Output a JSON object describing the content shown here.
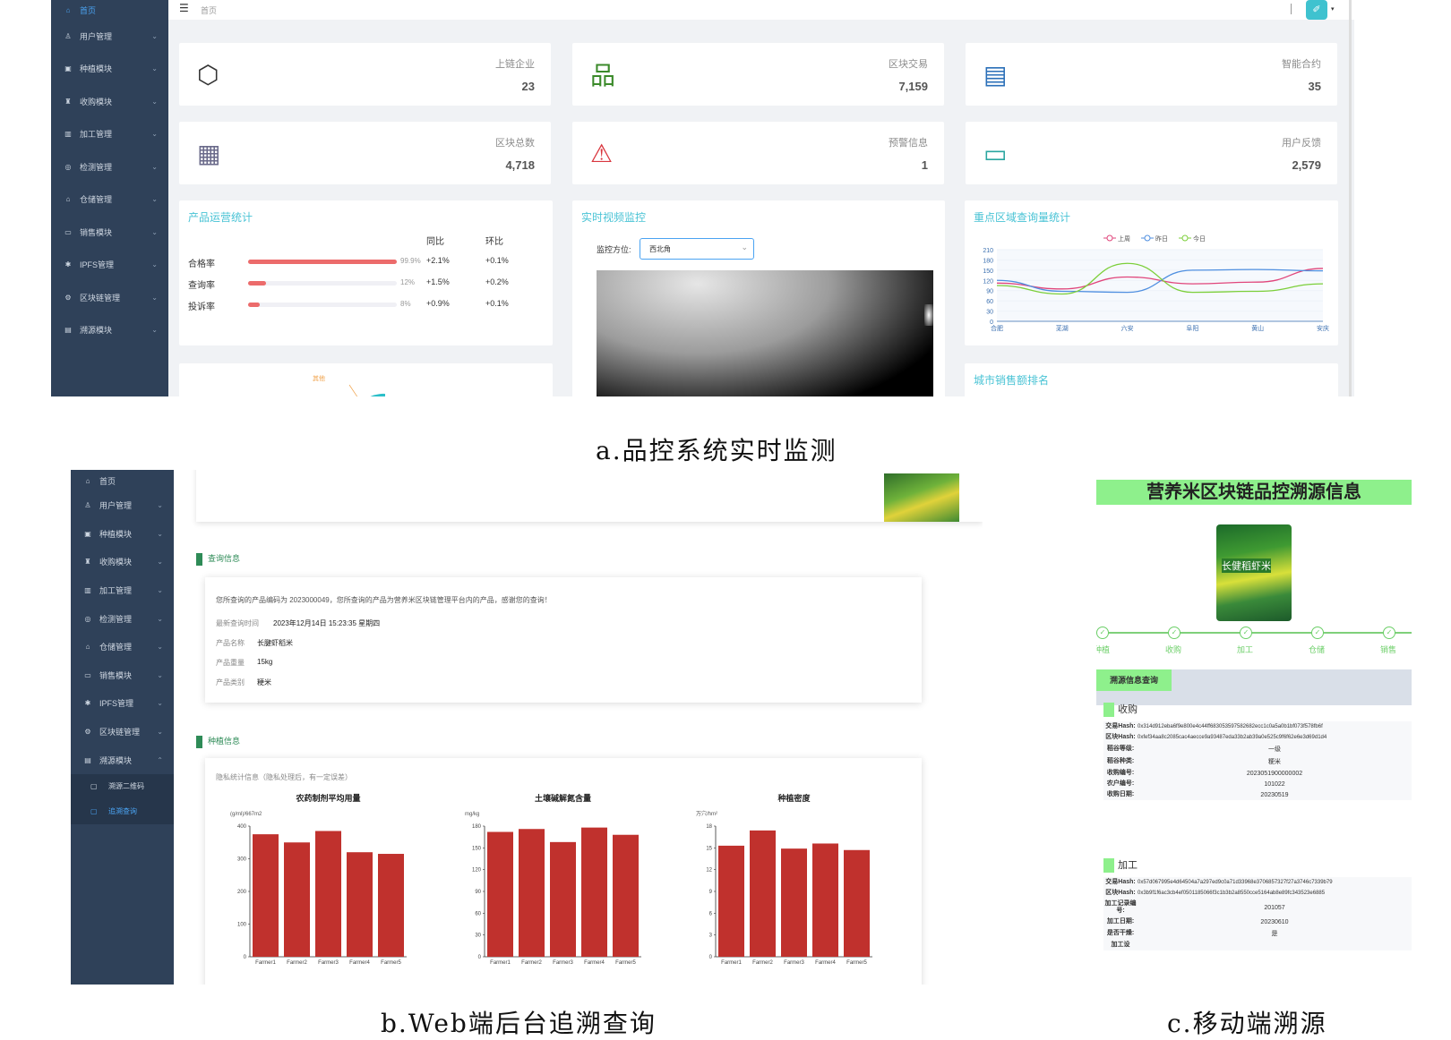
{
  "panel_a": {
    "sidebar": [
      {
        "label": "首页",
        "icon": "home-icon"
      },
      {
        "label": "用户管理",
        "icon": "user-icon"
      },
      {
        "label": "种植模块",
        "icon": "seed-icon"
      },
      {
        "label": "收购模块",
        "icon": "cart-icon"
      },
      {
        "label": "加工管理",
        "icon": "factory-icon"
      },
      {
        "label": "检测管理",
        "icon": "check-icon"
      },
      {
        "label": "仓储管理",
        "icon": "warehouse-icon"
      },
      {
        "label": "销售模块",
        "icon": "sales-icon"
      },
      {
        "label": "IPFS管理",
        "icon": "ipfs-icon"
      },
      {
        "label": "区块链管理",
        "icon": "gear-icon"
      },
      {
        "label": "溯源模块",
        "icon": "trace-icon"
      }
    ],
    "breadcrumb": "首页",
    "stats": [
      {
        "label": "上链企业",
        "value": "23",
        "icon": "cube-icon",
        "color": "#333333"
      },
      {
        "label": "区块交易",
        "value": "7,159",
        "icon": "org-chart-icon",
        "color": "#3b8a2a"
      },
      {
        "label": "智能合约",
        "value": "35",
        "icon": "contract-icon",
        "color": "#2a6fb8"
      },
      {
        "label": "区块总数",
        "value": "4,718",
        "icon": "blocks-icon",
        "color": "#6a6a8a"
      },
      {
        "label": "预警信息",
        "value": "1",
        "icon": "warning-icon",
        "color": "#d9363e"
      },
      {
        "label": "用户反馈",
        "value": "2,579",
        "icon": "feedback-icon",
        "color": "#2aa6a0"
      }
    ],
    "product_stats": {
      "title": "产品运营统计",
      "col_yoy": "同比",
      "col_mom": "环比",
      "rows": [
        {
          "label": "合格率",
          "pct_text": "99.9%",
          "pct": 99.9,
          "yoy": "+2.1%",
          "mom": "+0.1%"
        },
        {
          "label": "查询率",
          "pct_text": "12%",
          "pct": 12,
          "yoy": "+1.5%",
          "mom": "+0.2%"
        },
        {
          "label": "投诉率",
          "pct_text": "8%",
          "pct": 8,
          "yoy": "+0.9%",
          "mom": "+0.1%"
        }
      ],
      "pie_label": "其他"
    },
    "video": {
      "title": "实时视频监控",
      "select_label": "监控方位:",
      "select_value": "西北角"
    },
    "region_chart": {
      "title": "重点区域查询量统计",
      "chart_data": {
        "type": "line",
        "categories": [
          "合肥",
          "芜湖",
          "六安",
          "阜阳",
          "黄山",
          "安庆"
        ],
        "series": [
          {
            "name": "上周",
            "color": "#e0457b",
            "values": [
              112,
              95,
              130,
              110,
              115,
              155
            ]
          },
          {
            "name": "昨日",
            "color": "#4f8fe0",
            "values": [
              120,
              88,
              85,
              150,
              152,
              148
            ]
          },
          {
            "name": "今日",
            "color": "#7ccf3a",
            "values": [
              105,
              80,
              170,
              85,
              88,
              110
            ]
          }
        ],
        "yticks": [
          0,
          30,
          60,
          90,
          120,
          150,
          180,
          210
        ],
        "ylim": [
          0,
          210
        ]
      }
    },
    "city_rank_title": "城市销售额排名",
    "caption": "a.品控系统实时监测"
  },
  "panel_b": {
    "sidebar": [
      {
        "label": "首页"
      },
      {
        "label": "用户管理"
      },
      {
        "label": "种植模块"
      },
      {
        "label": "收购模块"
      },
      {
        "label": "加工管理"
      },
      {
        "label": "检测管理"
      },
      {
        "label": "仓储管理"
      },
      {
        "label": "销售模块"
      },
      {
        "label": "IPFS管理"
      },
      {
        "label": "区块链管理"
      },
      {
        "label": "溯源模块"
      }
    ],
    "submenu": [
      {
        "label": "溯源二维码"
      },
      {
        "label": "追溯查询"
      }
    ],
    "query_title": "查询信息",
    "query_intro": "您所查询的产品编码为 2023000049，您所查询的产品为营养米区块链管理平台内的产品，感谢您的查询！",
    "query_fields": [
      {
        "k": "最新查询时间",
        "v": "2023年12月14日 15:23:35 星期四"
      },
      {
        "k": "产品名称",
        "v": "长腱虾稻米"
      },
      {
        "k": "产品重量",
        "v": "15kg"
      },
      {
        "k": "产品类别",
        "v": "粳米"
      }
    ],
    "plant_title": "种植信息",
    "privacy_note": "隐私统计信息（隐私处理后，有一定误差）",
    "charts": [
      {
        "title": "农药制剂平均用量",
        "unit": "(g/ml)/667m2",
        "yticks": [
          0,
          100,
          200,
          300,
          400
        ],
        "ylim": [
          0,
          400
        ],
        "chart_data": {
          "type": "bar",
          "categories": [
            "Farmer1",
            "Farmer2",
            "Farmer3",
            "Farmer4",
            "Farmer5"
          ],
          "values": [
            375,
            350,
            385,
            320,
            315
          ]
        }
      },
      {
        "title": "土壤碱解氮含量",
        "unit": "mg/kg",
        "yticks": [
          0,
          30,
          60,
          90,
          120,
          150,
          180
        ],
        "ylim": [
          0,
          180
        ],
        "chart_data": {
          "type": "bar",
          "categories": [
            "Farmer1",
            "Farmer2",
            "Farmer3",
            "Farmer4",
            "Farmer5"
          ],
          "values": [
            172,
            176,
            158,
            178,
            168
          ]
        }
      },
      {
        "title": "种植密度",
        "unit": "万穴/hm²",
        "yticks": [
          0,
          3,
          6,
          9,
          12,
          15,
          18
        ],
        "ylim": [
          0,
          18
        ],
        "chart_data": {
          "type": "bar",
          "categories": [
            "Farmer1",
            "Farmer2",
            "Farmer3",
            "Farmer4",
            "Farmer5"
          ],
          "values": [
            15.3,
            17.4,
            14.9,
            15.6,
            14.7
          ]
        }
      }
    ],
    "caption": "b.Web端后台追溯查询"
  },
  "panel_c": {
    "title": "营养米区块链品控溯源信息",
    "bag_text": "长健稻虾米",
    "steps": [
      {
        "label": "种植"
      },
      {
        "label": "收购"
      },
      {
        "label": "加工"
      },
      {
        "label": "仓储"
      },
      {
        "label": "销售"
      }
    ],
    "query_btn": "溯源信息查询",
    "sections": [
      {
        "title": "收购",
        "rows": [
          {
            "k": "交易Hash:",
            "v": "0x314d912eba6f9e800e4c44ff683053597582682ecc1c0a5a0b1bf073f578fb6f"
          },
          {
            "k": "区块Hash:",
            "v": "0xfef34aa8c2085cac4aecce9a93487eda33b2ab39a0e525c9f6f62e6e3d69d1d4"
          },
          {
            "k": "稻谷等级:",
            "v": "一级"
          },
          {
            "k": "稻谷种类:",
            "v": "粳米"
          },
          {
            "k": "收购编号:",
            "v": "2023051900000002"
          },
          {
            "k": "农户编号:",
            "v": "101022"
          },
          {
            "k": "收购日期:",
            "v": "20230519"
          }
        ]
      },
      {
        "title": "加工",
        "rows": [
          {
            "k": "交易Hash:",
            "v": "0x57d067995e4d64504a7a297ed9c0a71d33968e3706857327f27a3746c7339b79"
          },
          {
            "k": "区块Hash:",
            "v": "0x3b9f1f6ac3cb4ef0501185066f3c1b3b2a8550cce5164ab8e89fc343523e6885"
          },
          {
            "k": "加工记录编号:",
            "v": "201057"
          },
          {
            "k": "加工日期:",
            "v": "20230610"
          },
          {
            "k": "是否干燥:",
            "v": "是"
          },
          {
            "k": "加工设",
            "v": ""
          }
        ]
      }
    ],
    "caption": "c.移动端溯源"
  }
}
